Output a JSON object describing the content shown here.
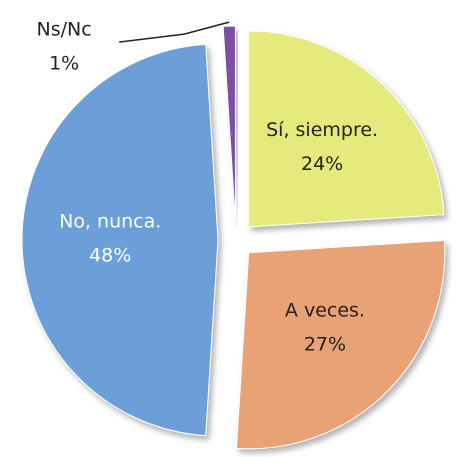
{
  "chart_data": {
    "type": "pie",
    "categories": [
      "Sí, siempre.",
      "A veces.",
      "No, nunca.",
      "Ns/Nc"
    ],
    "values": [
      24,
      27,
      48,
      1
    ],
    "value_labels": [
      "24%",
      "27%",
      "48%",
      "1%"
    ],
    "colors": [
      "#e6ea7c",
      "#e9a274",
      "#6c9fd7",
      "#7b4fa3"
    ],
    "label_colors": [
      "#222222",
      "#222222",
      "#ffffff",
      "#222222"
    ]
  }
}
